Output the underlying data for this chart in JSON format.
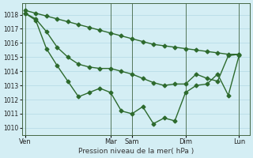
{
  "xlabel": "Pression niveau de la mer( hPa )",
  "bg_color": "#d4eef4",
  "grid_color": "#b8dde8",
  "line_color": "#2d6a2d",
  "ylim": [
    1009.5,
    1018.8
  ],
  "yticks": [
    1010,
    1011,
    1012,
    1013,
    1014,
    1015,
    1016,
    1017,
    1018
  ],
  "xtick_labels": [
    "Ven",
    "Mar",
    "Sam",
    "Dim",
    "Lun"
  ],
  "xtick_positions": [
    0,
    8,
    10,
    15,
    20
  ],
  "xlim": [
    -0.3,
    21.0
  ],
  "vline_positions": [
    0,
    8,
    10,
    15,
    20
  ],
  "line_top_x": [
    0,
    1,
    2,
    3,
    4,
    5,
    6,
    7,
    8,
    9,
    10,
    11,
    12,
    13,
    14,
    15,
    16,
    17,
    18,
    19,
    20
  ],
  "line_top_y": [
    1018.3,
    1018.1,
    1017.9,
    1017.7,
    1017.5,
    1017.3,
    1017.1,
    1016.9,
    1016.7,
    1016.5,
    1016.3,
    1016.1,
    1015.9,
    1015.8,
    1015.7,
    1015.6,
    1015.5,
    1015.4,
    1015.3,
    1015.2,
    1015.2
  ],
  "line_mid_x": [
    0,
    1,
    2,
    3,
    4,
    5,
    6,
    7,
    8,
    9,
    10,
    11,
    12,
    13,
    14,
    15,
    16,
    17,
    18,
    19,
    20
  ],
  "line_mid_y": [
    1018.1,
    1017.7,
    1016.8,
    1015.7,
    1015.0,
    1014.5,
    1014.3,
    1014.2,
    1014.2,
    1014.0,
    1013.8,
    1013.5,
    1013.2,
    1013.0,
    1013.1,
    1013.1,
    1013.8,
    1013.5,
    1013.3,
    1015.1,
    1015.2
  ],
  "line_bot_x": [
    0,
    1,
    2,
    3,
    4,
    5,
    6,
    7,
    8,
    9,
    10,
    11,
    12,
    13,
    14,
    15,
    16,
    17,
    18,
    19,
    20
  ],
  "line_bot_y": [
    1018.1,
    1017.6,
    1015.6,
    1014.4,
    1013.3,
    1012.2,
    1012.5,
    1012.8,
    1012.5,
    1011.2,
    1011.0,
    1011.5,
    1010.3,
    1010.7,
    1010.5,
    1012.5,
    1013.0,
    1013.1,
    1013.8,
    1012.3,
    1015.1
  ],
  "marker": "D",
  "marker_size": 2.5,
  "line_width": 1.0
}
